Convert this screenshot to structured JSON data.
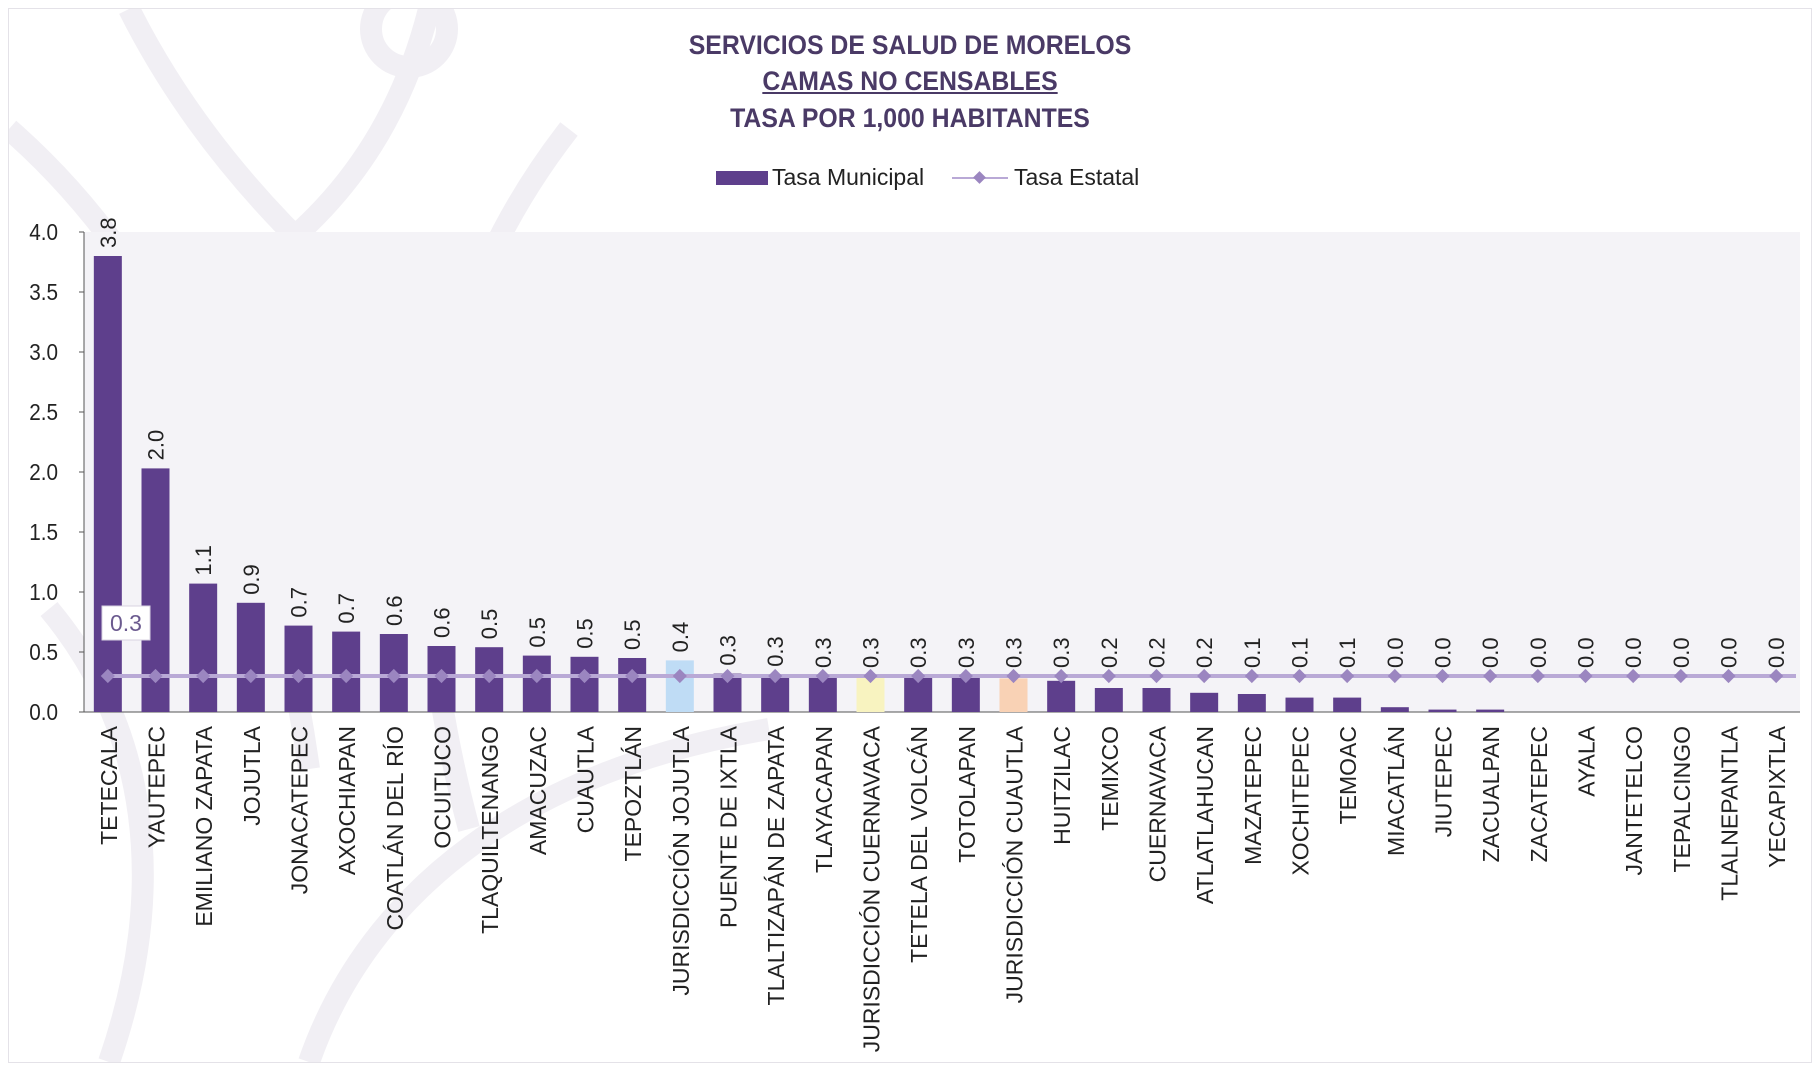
{
  "title": {
    "line1": "SERVICIOS DE SALUD DE MORELOS",
    "line2": "CAMAS NO CENSABLES",
    "line3": "TASA POR 1,000 HABITANTES"
  },
  "legend": {
    "municipal": "Tasa Municipal",
    "estatal": "Tasa Estatal"
  },
  "colors": {
    "bar": "#5e3f8c",
    "line": "#b9a9d6",
    "marker": "#9b86c0",
    "plot_bg": "#f4f3f7",
    "highlight_jojutla": "#bfdcf5",
    "highlight_cuernavaca": "#f8f3c0",
    "highlight_cuautla": "#f9d2b5",
    "title": "#4a3a66"
  },
  "chart_data": {
    "type": "bar",
    "title": "SERVICIOS DE SALUD DE MORELOS CAMAS NO CENSABLES TASA POR 1,000 HABITANTES",
    "ylim": [
      0,
      4
    ],
    "yticks": [
      "0.0",
      "0.5",
      "1.0",
      "1.5",
      "2.0",
      "2.5",
      "3.0",
      "3.5",
      "4.0"
    ],
    "grid": false,
    "legend_position": "top-center",
    "categories": [
      "TETECALA",
      "YAUTEPEC",
      "EMILIANO ZAPATA",
      "JOJUTLA",
      "JONACATEPEC",
      "AXOCHIAPAN",
      "COATLÁN DEL RÍO",
      "OCUITUCO",
      "TLAQUILTENANGO",
      "AMACUZAC",
      "CUAUTLA",
      "TEPOZTLÁN",
      "JURISDICCIÓN JOJUTLA",
      "PUENTE DE IXTLA",
      "TLALTIZAPÁN DE ZAPATA",
      "TLAYACAPAN",
      "JURISDICCIÓN CUERNAVACA",
      "TETELA DEL VOLCÁN",
      "TOTOLAPAN",
      "JURISDICCIÓN CUAUTLA",
      "HUITZILAC",
      "TEMIXCO",
      "CUERNAVACA",
      "ATLATLAHUCAN",
      "MAZATEPEC",
      "XOCHITEPEC",
      "TEMOAC",
      "MIACATLÁN",
      "JIUTEPEC",
      "ZACUALPAN",
      "ZACATEPEC",
      "AYALA",
      "JANTETELCO",
      "TEPALCINGO",
      "TLALNEPANTLA",
      "YECAPIXTLA"
    ],
    "series": [
      {
        "name": "Tasa Municipal",
        "type": "bar",
        "values": [
          3.8,
          2.03,
          1.07,
          0.91,
          0.72,
          0.67,
          0.65,
          0.55,
          0.54,
          0.47,
          0.46,
          0.45,
          0.43,
          0.32,
          0.31,
          0.3,
          0.29,
          0.29,
          0.29,
          0.28,
          0.26,
          0.2,
          0.2,
          0.16,
          0.15,
          0.12,
          0.12,
          0.04,
          0.02,
          0.02,
          0,
          0,
          0,
          0,
          0,
          0
        ],
        "labels": [
          "3.8",
          "2.0",
          "1.1",
          "0.9",
          "0.7",
          "0.7",
          "0.6",
          "0.6",
          "0.5",
          "0.5",
          "0.5",
          "0.5",
          "0.4",
          "0.3",
          "0.3",
          "0.3",
          "0.3",
          "0.3",
          "0.3",
          "0.3",
          "0.3",
          "0.2",
          "0.2",
          "0.2",
          "0.1",
          "0.1",
          "0.1",
          "0.0",
          "0.0",
          "0.0",
          "0.0",
          "0.0",
          "0.0",
          "0.0",
          "0.0",
          "0.0"
        ],
        "highlights": {
          "JURISDICCIÓN JOJUTLA": "#bfdcf5",
          "JURISDICCIÓN CUERNAVACA": "#f8f3c0",
          "JURISDICCIÓN CUAUTLA": "#f9d2b5"
        }
      },
      {
        "name": "Tasa Estatal",
        "type": "line",
        "value": 0.3,
        "label": "0.3"
      }
    ]
  }
}
